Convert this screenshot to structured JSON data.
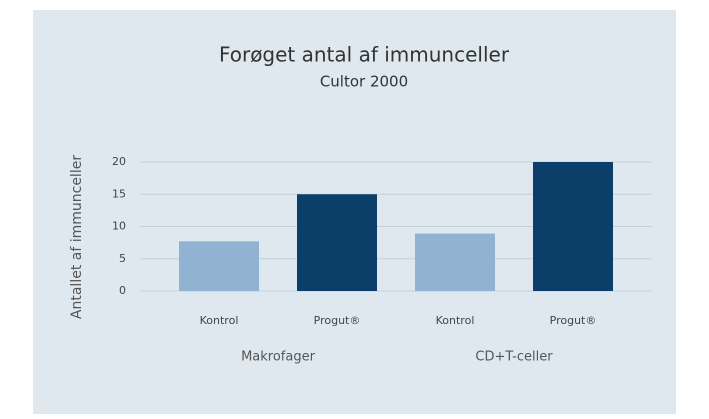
{
  "chart_data": {
    "type": "bar",
    "title": "Forøget antal af immunceller",
    "subtitle": "Cultor 2000",
    "y_label": "Antallet af immunceller",
    "categories": [
      "Makrofager",
      "CD+T-celler"
    ],
    "series": [
      {
        "name": "Kontrol",
        "color": "#8fb3d1",
        "values": [
          7.7,
          8.9
        ]
      },
      {
        "name": "Progut®",
        "color": "#0b3f69",
        "values": [
          15,
          20
        ]
      }
    ],
    "ylim": [
      0,
      20
    ],
    "yticks": [
      0,
      5,
      10,
      15,
      20
    ],
    "grid": true
  }
}
